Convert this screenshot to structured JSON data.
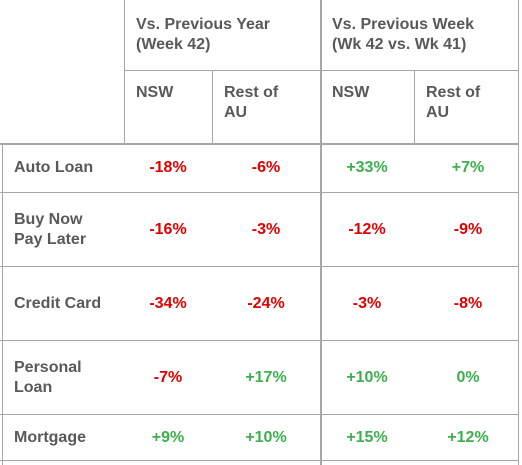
{
  "groups": [
    {
      "title": "Vs. Previous Year\n(Week 42)"
    },
    {
      "title": "Vs. Previous Week\n(Wk 42 vs. Wk 41)"
    }
  ],
  "subheaders": [
    "NSW",
    "Rest of\nAU",
    "NSW",
    "Rest of\nAU"
  ],
  "rows": [
    {
      "label": "Auto Loan",
      "values": [
        "-18%",
        "-6%",
        "+33%",
        "+7%"
      ]
    },
    {
      "label": "Buy Now\nPay Later",
      "values": [
        "-16%",
        "-3%",
        "-12%",
        "-9%"
      ]
    },
    {
      "label": "Credit Card",
      "values": [
        "-34%",
        "-24%",
        "-3%",
        "-8%"
      ]
    },
    {
      "label": "Personal\nLoan",
      "values": [
        "-7%",
        "+17%",
        "+10%",
        "0%"
      ]
    },
    {
      "label": "Mortgage",
      "values": [
        "+9%",
        "+10%",
        "+15%",
        "+12%"
      ]
    }
  ],
  "colors": {
    "negative": "#e00000",
    "positive": "#3cb04c",
    "header_text": "#595959",
    "border": "#a6a6a6"
  }
}
